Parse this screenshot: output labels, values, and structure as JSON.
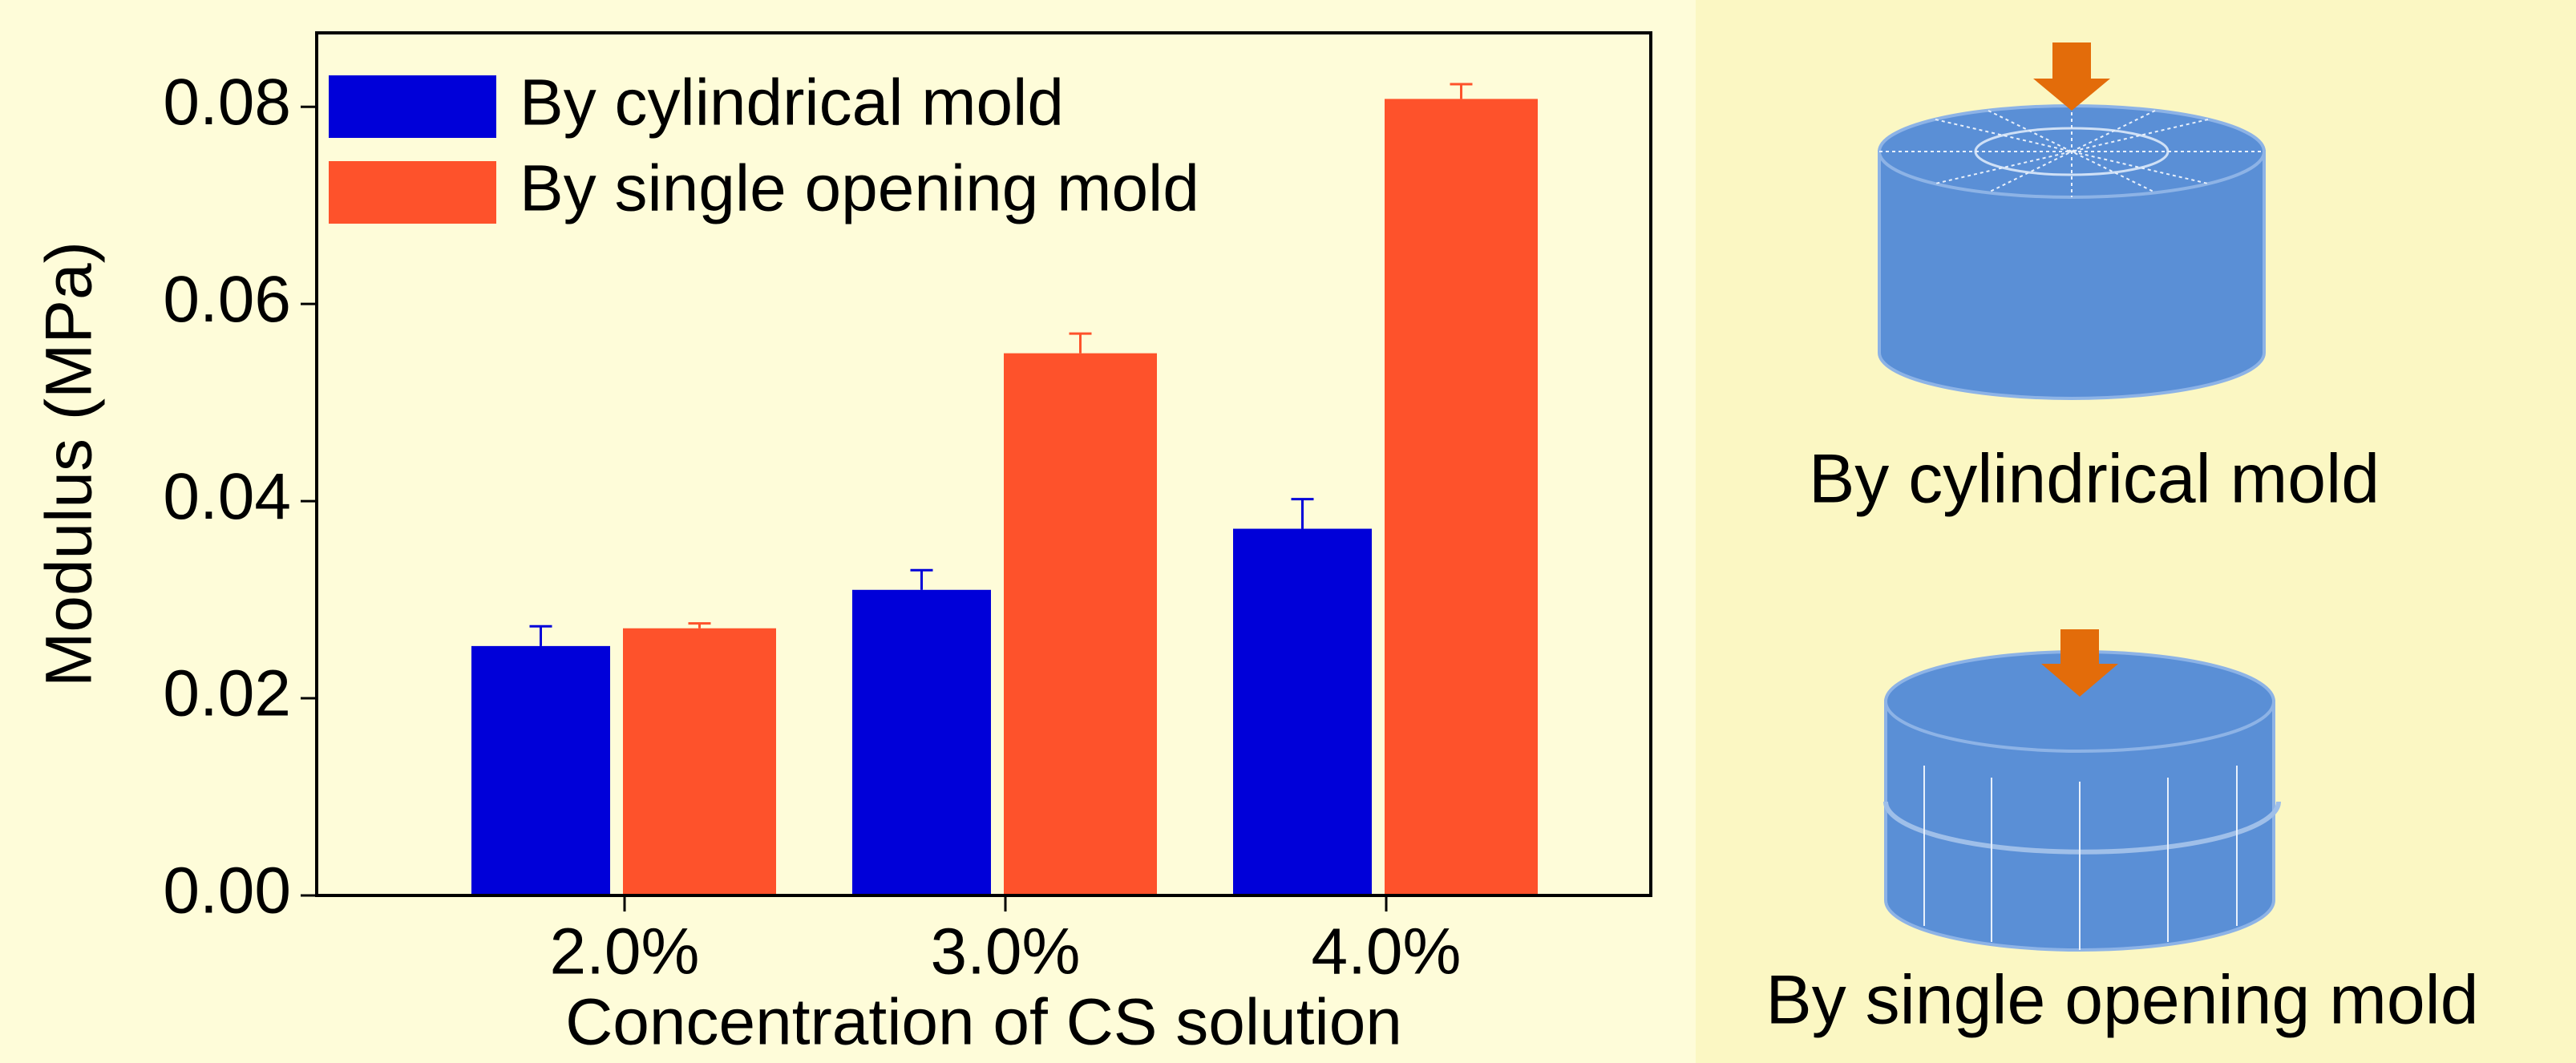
{
  "chart_data": {
    "type": "bar",
    "categories": [
      "2.0%",
      "3.0%",
      "4.0%"
    ],
    "xlabel": "Concentration of CS solution",
    "ylabel": "Modulus (MPa)",
    "ylim": [
      0,
      0.0875
    ],
    "yticks": [
      {
        "value": 0,
        "label": "0.00"
      },
      0.02,
      0.04,
      0.06,
      0.08
    ],
    "legend": "upper left",
    "series": [
      {
        "name": "By cylindrical mold",
        "color": "#0000d9",
        "values": [
          0.0253,
          0.031,
          0.0372
        ],
        "errors": [
          0.002,
          0.002,
          0.003
        ]
      },
      {
        "name": "By single opening mold",
        "color": "#fe522b",
        "values": [
          0.0271,
          0.055,
          0.0808
        ],
        "errors": [
          0.0005,
          0.002,
          0.0015
        ]
      }
    ]
  },
  "diagram": {
    "panels": [
      {
        "label": "By cylindrical mold"
      },
      {
        "label": "By single opening mold"
      }
    ]
  }
}
